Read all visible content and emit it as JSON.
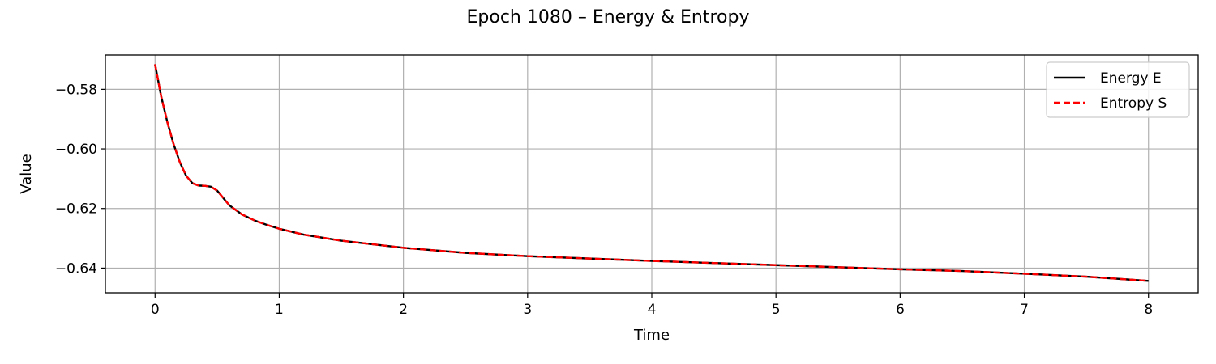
{
  "chart_data": {
    "type": "line",
    "title": "Epoch 1080 – Energy & Entropy",
    "xlabel": "Time",
    "ylabel": "Value",
    "xlim": [
      -0.4,
      8.4
    ],
    "ylim": [
      -0.6483,
      -0.5685
    ],
    "xticks": [
      0,
      1,
      2,
      3,
      4,
      5,
      6,
      7,
      8
    ],
    "xtick_labels": [
      "0",
      "1",
      "2",
      "3",
      "4",
      "5",
      "6",
      "7",
      "8"
    ],
    "yticks": [
      -0.58,
      -0.6,
      -0.62,
      -0.64
    ],
    "ytick_labels": [
      "−0.58",
      "−0.60",
      "−0.62",
      "−0.64"
    ],
    "grid": true,
    "legend_position": "top-right",
    "x": [
      0,
      0.05,
      0.1,
      0.15,
      0.2,
      0.25,
      0.3,
      0.35,
      0.4,
      0.45,
      0.5,
      0.55,
      0.6,
      0.7,
      0.8,
      0.9,
      1.0,
      1.2,
      1.5,
      2.0,
      2.5,
      3.0,
      3.5,
      4.0,
      4.5,
      5.0,
      5.5,
      6.0,
      6.5,
      7.0,
      7.5,
      8.0
    ],
    "series": [
      {
        "name": "Energy E",
        "color": "#000000",
        "dash": "solid",
        "values": [
          -0.5716,
          -0.5825,
          -0.5912,
          -0.5985,
          -0.6045,
          -0.609,
          -0.6115,
          -0.6123,
          -0.6124,
          -0.6127,
          -0.614,
          -0.6165,
          -0.619,
          -0.622,
          -0.624,
          -0.6255,
          -0.6268,
          -0.6288,
          -0.6308,
          -0.6332,
          -0.6349,
          -0.636,
          -0.6368,
          -0.6376,
          -0.6383,
          -0.639,
          -0.6397,
          -0.6404,
          -0.641,
          -0.6419,
          -0.6429,
          -0.6443
        ]
      },
      {
        "name": "Entropy S",
        "color": "#ff0000",
        "dash": "dashed",
        "values": [
          -0.5716,
          -0.5825,
          -0.5912,
          -0.5985,
          -0.6045,
          -0.609,
          -0.6115,
          -0.6123,
          -0.6124,
          -0.6127,
          -0.614,
          -0.6165,
          -0.619,
          -0.622,
          -0.624,
          -0.6255,
          -0.6268,
          -0.6288,
          -0.6308,
          -0.6332,
          -0.6349,
          -0.636,
          -0.6368,
          -0.6376,
          -0.6383,
          -0.639,
          -0.6397,
          -0.6404,
          -0.641,
          -0.6419,
          -0.6429,
          -0.6443
        ]
      }
    ]
  }
}
